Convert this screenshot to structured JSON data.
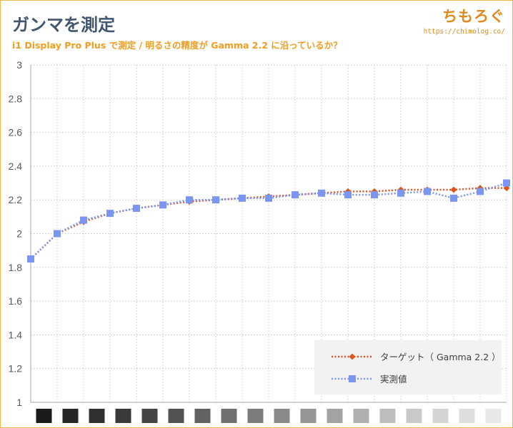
{
  "header": {
    "title": "ガンマを測定",
    "subtitle": "i1 Display Pro Plus で測定 / 明るさの精度が Gamma 2.2 に沿っているか？",
    "brand_name": "ちもろぐ",
    "brand_url": "https://chimolog.co/"
  },
  "chart_data": {
    "type": "line",
    "title": "ガンマを測定",
    "subtitle": "i1 Display Pro Plus で測定 / 明るさの精度が Gamma 2.2 に沿っているか？",
    "xlabel": "",
    "ylabel": "",
    "ylim": [
      1,
      3
    ],
    "y_ticks": [
      1,
      1.2,
      1.4,
      1.6,
      1.8,
      2,
      2.2,
      2.4,
      2.6,
      2.8,
      3
    ],
    "y_tick_labels": [
      "1",
      "1.2",
      "1.4",
      "1.6",
      "1.8",
      "2",
      "2.2",
      "2.4",
      "2.6",
      "2.8",
      "3"
    ],
    "grid": true,
    "legend_position": "bottom-right",
    "x_axis_swatches": [
      "#1b1b1b",
      "#262626",
      "#303030",
      "#3a3a3a",
      "#454545",
      "#525252",
      "#626262",
      "#707070",
      "#7c7c7c",
      "#898989",
      "#969696",
      "#a3a3a3",
      "#b0b0b0",
      "#bdbdbd",
      "#c9c9c9",
      "#d4d4d4",
      "#dedede",
      "#e8e8e8"
    ],
    "series": [
      {
        "name": "ターゲット（ Gamma 2.2 ）",
        "color": "#e0531f",
        "marker": "diamond",
        "values": [
          1.85,
          2.0,
          2.07,
          2.12,
          2.15,
          2.17,
          2.19,
          2.2,
          2.21,
          2.22,
          2.23,
          2.24,
          2.25,
          2.25,
          2.26,
          2.26,
          2.26,
          2.27,
          2.27
        ]
      },
      {
        "name": "実測値",
        "color": "#7b96f0",
        "marker": "square",
        "values": [
          1.85,
          2.0,
          2.08,
          2.12,
          2.15,
          2.17,
          2.2,
          2.2,
          2.21,
          2.21,
          2.23,
          2.24,
          2.23,
          2.23,
          2.24,
          2.25,
          2.21,
          2.25,
          2.3
        ]
      }
    ]
  }
}
